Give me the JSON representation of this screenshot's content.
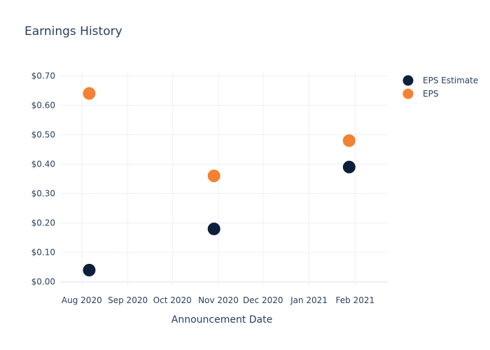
{
  "chart_data": {
    "type": "scatter",
    "title": "Earnings History",
    "xlabel": "Announcement Date",
    "ylabel": "",
    "x_axis_type": "date",
    "xlim": [
      "2020-07-17",
      "2021-02-23"
    ],
    "ylim": [
      -0.015,
      0.715
    ],
    "x_ticks": [
      {
        "date": "2020-08-01",
        "label": "Aug 2020"
      },
      {
        "date": "2020-09-01",
        "label": "Sep 2020"
      },
      {
        "date": "2020-10-01",
        "label": "Oct 2020"
      },
      {
        "date": "2020-11-01",
        "label": "Nov 2020"
      },
      {
        "date": "2020-12-01",
        "label": "Dec 2020"
      },
      {
        "date": "2021-01-01",
        "label": "Jan 2021"
      },
      {
        "date": "2021-02-01",
        "label": "Feb 2021"
      }
    ],
    "y_ticks": [
      {
        "value": 0.0,
        "label": "$0.00"
      },
      {
        "value": 0.1,
        "label": "$0.10"
      },
      {
        "value": 0.2,
        "label": "$0.20"
      },
      {
        "value": 0.3,
        "label": "$0.30"
      },
      {
        "value": 0.4,
        "label": "$0.40"
      },
      {
        "value": 0.5,
        "label": "$0.50"
      },
      {
        "value": 0.6,
        "label": "$0.60"
      },
      {
        "value": 0.7,
        "label": "$0.70"
      }
    ],
    "grid": true,
    "legend_position": "top-right",
    "series": [
      {
        "name": "EPS Estimate",
        "color": "#0d1f3c",
        "points": [
          {
            "x": "2020-08-06",
            "y": 0.04
          },
          {
            "x": "2020-10-29",
            "y": 0.18
          },
          {
            "x": "2021-01-28",
            "y": 0.39
          }
        ]
      },
      {
        "name": "EPS",
        "color": "#f58231",
        "points": [
          {
            "x": "2020-08-06",
            "y": 0.64
          },
          {
            "x": "2020-10-29",
            "y": 0.36
          },
          {
            "x": "2021-01-28",
            "y": 0.48
          }
        ]
      }
    ]
  }
}
